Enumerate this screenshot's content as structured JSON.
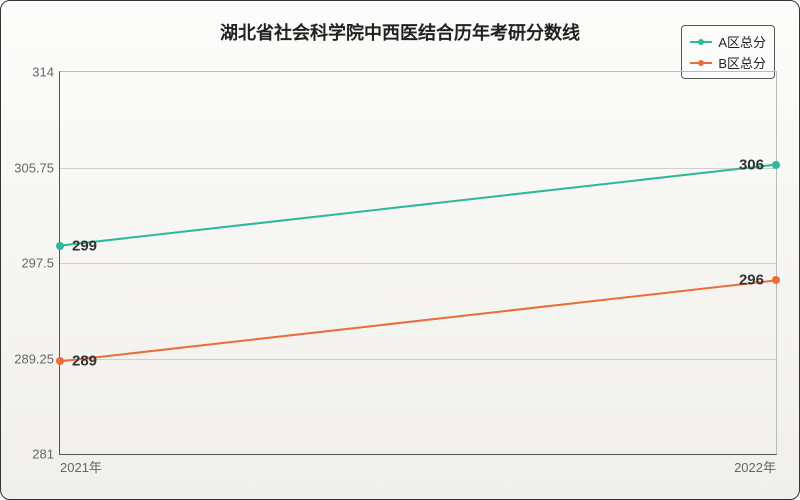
{
  "chart": {
    "title": "湖北省社会科学院中西医结合历年考研分数线",
    "title_fontsize": 18,
    "series": [
      {
        "name": "A区总分",
        "color": "#2fb89a",
        "points": [
          {
            "xlabel": "2021年",
            "x": 0,
            "y": 299
          },
          {
            "xlabel": "2022年",
            "x": 1,
            "y": 306
          }
        ]
      },
      {
        "name": "B区总分",
        "color": "#e86e3a",
        "points": [
          {
            "xlabel": "2021年",
            "x": 0,
            "y": 289
          },
          {
            "xlabel": "2022年",
            "x": 1,
            "y": 296
          }
        ]
      }
    ],
    "yaxis": {
      "min": 281,
      "max": 314,
      "ticks": [
        281,
        289.25,
        297.5,
        305.75,
        314
      ]
    },
    "xaxis": {
      "labels": [
        "2021年",
        "2022年"
      ]
    },
    "legend_fontsize": 13,
    "data_label_fontsize": 15,
    "grid_color": "#cfcfcf",
    "background_gradient": [
      "#fcfcfa",
      "#f0efeb"
    ],
    "line_width": 2,
    "marker_size": 8
  }
}
